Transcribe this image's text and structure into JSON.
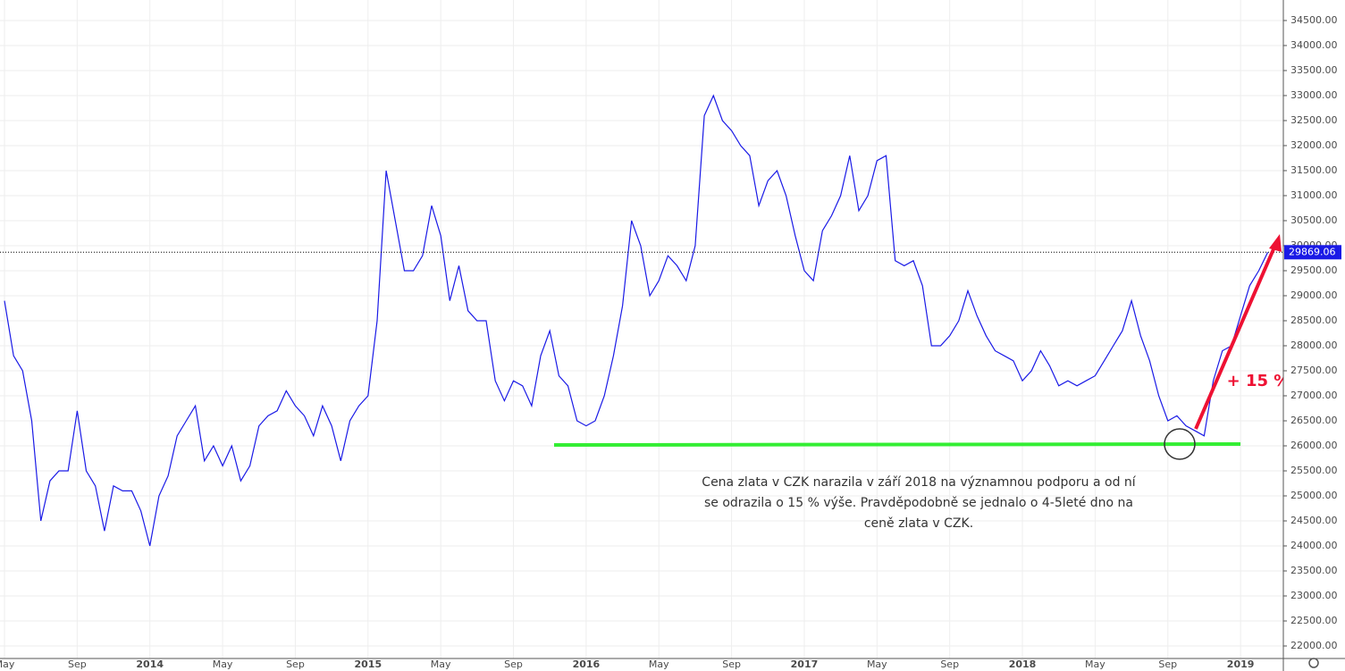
{
  "chart_data": {
    "type": "line",
    "categories": [
      "May",
      null,
      null,
      null,
      null,
      null,
      null,
      null,
      "Sep",
      null,
      null,
      null,
      null,
      null,
      null,
      null,
      "2014",
      null,
      null,
      null,
      null,
      null,
      null,
      null,
      "May",
      null,
      null,
      null,
      null,
      null,
      null,
      null,
      "Sep",
      null,
      null,
      null,
      null,
      null,
      null,
      null,
      "2015",
      null,
      null,
      null,
      null,
      null,
      null,
      null,
      "May",
      null,
      null,
      null,
      null,
      null,
      null,
      null,
      "Sep",
      null,
      null,
      null,
      null,
      null,
      null,
      null,
      "2016",
      null,
      null,
      null,
      null,
      null,
      null,
      null,
      "May",
      null,
      null,
      null,
      null,
      null,
      null,
      null,
      "Sep",
      null,
      null,
      null,
      null,
      null,
      null,
      null,
      "2017",
      null,
      null,
      null,
      null,
      null,
      null,
      null,
      "May",
      null,
      null,
      null,
      null,
      null,
      null,
      null,
      "Sep",
      null,
      null,
      null,
      null,
      null,
      null,
      null,
      "2018",
      null,
      null,
      null,
      null,
      null,
      null,
      null,
      "May",
      null,
      null,
      null,
      null,
      null,
      null,
      null,
      "Sep",
      null,
      null,
      null,
      null,
      null,
      null,
      null,
      "2019",
      null,
      null,
      null
    ],
    "series": [
      {
        "color": "#1a1ae6",
        "values": [
          28900,
          27800,
          27500,
          26500,
          24500,
          25300,
          25500,
          25500,
          26700,
          25500,
          25200,
          24300,
          25200,
          25100,
          25100,
          24700,
          24000,
          25000,
          25400,
          26200,
          26500,
          26800,
          25700,
          26000,
          25600,
          26000,
          25300,
          25600,
          26400,
          26600,
          26700,
          27100,
          26800,
          26600,
          26200,
          26800,
          26400,
          25700,
          26500,
          26800,
          27000,
          28500,
          31500,
          30500,
          29500,
          29500,
          29800,
          30800,
          30200,
          28900,
          29600,
          28700,
          28500,
          28500,
          27300,
          26900,
          27300,
          27200,
          26800,
          27800,
          28300,
          27400,
          27200,
          26500,
          26400,
          26500,
          27000,
          27800,
          28800,
          30500,
          30000,
          29000,
          29300,
          29800,
          29600,
          29300,
          30000,
          32600,
          33000,
          32500,
          32300,
          32000,
          31800,
          30800,
          31300,
          31500,
          31000,
          30200,
          29500,
          29300,
          30300,
          30600,
          31000,
          31800,
          30700,
          31000,
          31700,
          31800,
          29700,
          29600,
          29700,
          29200,
          28000,
          28000,
          28200,
          28500,
          29100,
          28600,
          28200,
          27900,
          27800,
          27700,
          27300,
          27500,
          27900,
          27600,
          27200,
          27300,
          27200,
          27300,
          27400,
          27700,
          28000,
          28300,
          28900,
          28200,
          27700,
          27000,
          26500,
          26600,
          26400,
          26300,
          26200,
          27300,
          27900,
          28000,
          28600,
          29200,
          29500,
          29869.06
        ]
      }
    ],
    "ylim": [
      21750,
      34910
    ],
    "yticks": [
      {
        "value": 22000,
        "label": "22000.00"
      },
      {
        "value": 22500,
        "label": "22500.00"
      },
      {
        "value": 23000,
        "label": "23000.00"
      },
      {
        "value": 23500,
        "label": "23500.00"
      },
      {
        "value": 24000,
        "label": "24000.00"
      },
      {
        "value": 24500,
        "label": "24500.00"
      },
      {
        "value": 25000,
        "label": "25000.00"
      },
      {
        "value": 25500,
        "label": "25500.00"
      },
      {
        "value": 26000,
        "label": "26000.00"
      },
      {
        "value": 26500,
        "label": "26500.00"
      },
      {
        "value": 27000,
        "label": "27000.00"
      },
      {
        "value": 27500,
        "label": "27500.00"
      },
      {
        "value": 28000,
        "label": "28000.00"
      },
      {
        "value": 28500,
        "label": "28500.00"
      },
      {
        "value": 29000,
        "label": "29000.00"
      },
      {
        "value": 29500,
        "label": "29500.00"
      },
      {
        "value": 30000,
        "label": "30000.00"
      },
      {
        "value": 30500,
        "label": "30500.00"
      },
      {
        "value": 31000,
        "label": "31000.00"
      },
      {
        "value": 31500,
        "label": "31500.00"
      },
      {
        "value": 32000,
        "label": "32000.00"
      },
      {
        "value": 32500,
        "label": "32500.00"
      },
      {
        "value": 33000,
        "label": "33000.00"
      },
      {
        "value": 33500,
        "label": "33500.00"
      },
      {
        "value": 34000,
        "label": "34000.00"
      },
      {
        "value": 34500,
        "label": "34500.00"
      }
    ],
    "grid": true,
    "annotations": {
      "gain": "+ 15 %",
      "note": [
        "Cena zlata v CZK narazila v září 2018 na významnou podporu a od ní",
        "se odrazila o 15 % výše. Pravděpodobně se jednalo o 4-5leté dno na",
        "ceně zlata v CZK."
      ]
    }
  }
}
